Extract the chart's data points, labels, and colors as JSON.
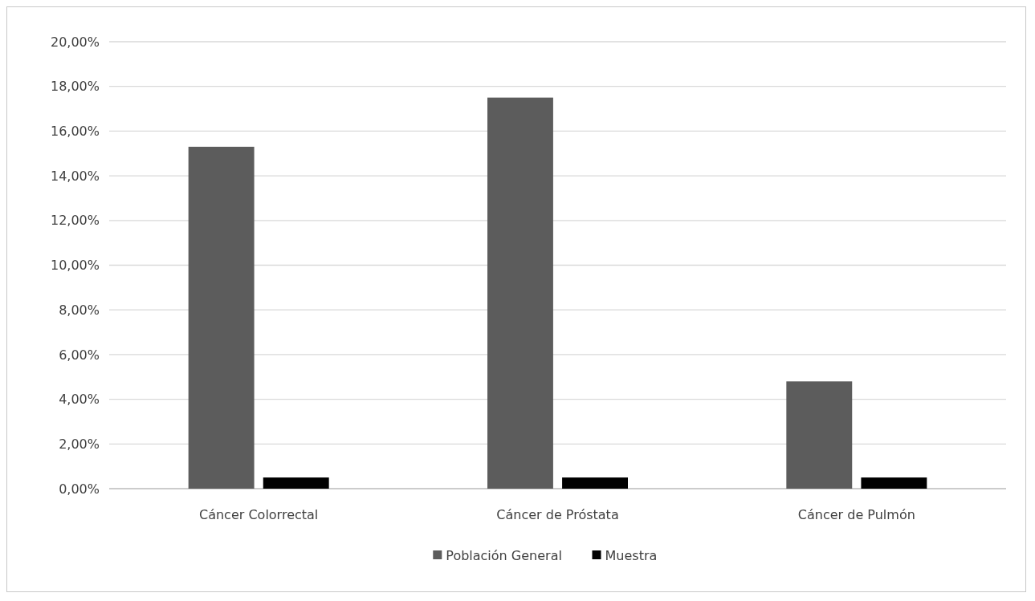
{
  "chart_data": {
    "type": "bar",
    "categories": [
      "Cáncer Colorrectal",
      "Cáncer de Próstata",
      "Cáncer de Pulmón"
    ],
    "series": [
      {
        "name": "Población General",
        "color": "#5c5c5c",
        "values": [
          15.3,
          17.5,
          4.8
        ]
      },
      {
        "name": "Muestra",
        "color": "#000000",
        "values": [
          0.5,
          0.5,
          0.5
        ]
      }
    ],
    "ylim": [
      0,
      20
    ],
    "yticks": [
      {
        "value": 0,
        "label": "0,00%"
      },
      {
        "value": 2,
        "label": "2,00%"
      },
      {
        "value": 4,
        "label": "4,00%"
      },
      {
        "value": 6,
        "label": "6,00%"
      },
      {
        "value": 8,
        "label": "8,00%"
      },
      {
        "value": 10,
        "label": "10,00%"
      },
      {
        "value": 12,
        "label": "12,00%"
      },
      {
        "value": 14,
        "label": "14,00%"
      },
      {
        "value": 16,
        "label": "16,00%"
      },
      {
        "value": 18,
        "label": "18,00%"
      },
      {
        "value": 20,
        "label": "20,00%"
      }
    ],
    "grid": "y",
    "legend": "bottom"
  }
}
